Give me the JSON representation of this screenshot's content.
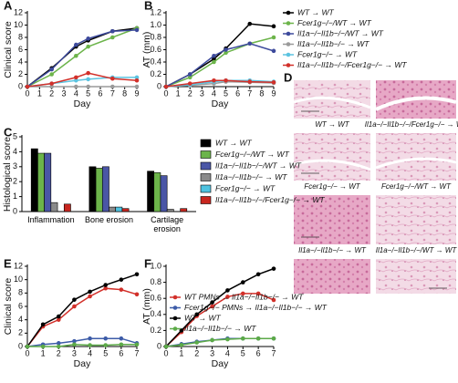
{
  "chart_data": [
    {
      "type": "line",
      "panel": "A",
      "x_label": "Day",
      "y_label": "Clinical score",
      "x": [
        0,
        2,
        4,
        5,
        7,
        9
      ],
      "xlim": [
        0,
        9
      ],
      "xticks": [
        0,
        1,
        2,
        3,
        4,
        5,
        6,
        7,
        8,
        9
      ],
      "ylim": [
        0,
        12
      ],
      "yticks": [
        0,
        2,
        4,
        6,
        8,
        10,
        12
      ],
      "series": [
        {
          "color": "#000000",
          "values": [
            0,
            3,
            6.5,
            7.5,
            9,
            9.5
          ]
        },
        {
          "color": "#6cb44a",
          "values": [
            0,
            2,
            5,
            6.5,
            8,
            9.5
          ]
        },
        {
          "color": "#3d4a9c",
          "values": [
            0,
            2.8,
            6.8,
            7.8,
            9,
            9.2
          ]
        },
        {
          "color": "#9a9a9a",
          "values": [
            0,
            0,
            0,
            0,
            0,
            0
          ]
        },
        {
          "color": "#5cc3e0",
          "values": [
            0,
            0.5,
            1,
            1.2,
            1.5,
            1.5
          ]
        },
        {
          "color": "#d2302a",
          "values": [
            0,
            0.5,
            1.5,
            2.2,
            1.3,
            1
          ]
        }
      ]
    },
    {
      "type": "line",
      "panel": "B",
      "x_label": "Day",
      "y_label": "AT (mm)",
      "x": [
        0,
        2,
        4,
        5,
        7,
        9
      ],
      "xlim": [
        0,
        9
      ],
      "xticks": [
        0,
        1,
        2,
        3,
        4,
        5,
        6,
        7,
        8,
        9
      ],
      "ylim": [
        0,
        1.2
      ],
      "yticks": [
        0,
        0.2,
        0.4,
        0.6,
        0.8,
        {
          "value": 1,
          "label": "1.0"
        },
        1.2
      ],
      "series": [
        {
          "name": "WT → WT",
          "color": "#000000",
          "values": [
            0,
            0.2,
            0.45,
            0.62,
            1.02,
            0.98
          ]
        },
        {
          "name": "Fcer1g−/−/WT → WT",
          "color": "#6cb44a",
          "values": [
            0,
            0.15,
            0.4,
            0.55,
            0.7,
            0.8
          ]
        },
        {
          "name": "Il1a−/−Il1b−/−/WT → WT",
          "color": "#3d4a9c",
          "values": [
            0,
            0.2,
            0.5,
            0.6,
            0.7,
            0.58
          ]
        },
        {
          "name": "Il1a−/−Il1b−/− → WT",
          "color": "#9a9a9a",
          "values": [
            0,
            0.02,
            0.05,
            0.08,
            0.07,
            0.06
          ]
        },
        {
          "name": "Fcer1g−/− → WT",
          "color": "#5cc3e0",
          "values": [
            0,
            0.03,
            0.08,
            0.1,
            0.1,
            0.08
          ]
        },
        {
          "name": "Il1a−/−Il1b−/−/Fcer1g−/− → WT",
          "color": "#d2302a",
          "values": [
            0,
            0.05,
            0.1,
            0.1,
            0.08,
            0.07
          ]
        }
      ]
    },
    {
      "type": "bar",
      "panel": "C",
      "y_label": "Histological score",
      "categories": [
        "Inflammation",
        "Bone erosion",
        "Cartilage erosion"
      ],
      "ylim": [
        0,
        5
      ],
      "yticks": [
        0,
        1,
        2,
        3,
        4,
        5
      ],
      "series": [
        {
          "name": "WT → WT",
          "color": "#000000",
          "values": [
            4.2,
            3.0,
            2.7
          ]
        },
        {
          "name": "Fcer1g−/−/WT → WT",
          "color": "#6cb44a",
          "values": [
            3.9,
            2.9,
            2.6
          ]
        },
        {
          "name": "Il1a−/−Il1b−/−/WT → WT",
          "color": "#4a56a6",
          "values": [
            3.9,
            3.0,
            2.4
          ]
        },
        {
          "name": "Il1a−/−Il1b−/− → WT",
          "color": "#8a8a8a",
          "values": [
            0.6,
            0.3,
            0.15
          ]
        },
        {
          "name": "Fcer1g−/− → WT",
          "color": "#4fc3e0",
          "values": [
            0,
            0.3,
            0
          ]
        },
        {
          "name": "Il1a−/−Il1b−/−/Fcer1g−/− → WT",
          "color": "#c8261f",
          "values": [
            0.5,
            0.2,
            0.2
          ]
        }
      ]
    },
    {
      "type": "line",
      "panel": "E",
      "x_label": "Day",
      "y_label": "Clinical score",
      "x": [
        0,
        1,
        2,
        3,
        4,
        5,
        6,
        7
      ],
      "xlim": [
        0,
        7
      ],
      "xticks": [
        0,
        1,
        2,
        3,
        4,
        5,
        6,
        7
      ],
      "ylim": [
        0,
        12
      ],
      "yticks": [
        0,
        2,
        4,
        6,
        8,
        10,
        12
      ],
      "series": [
        {
          "color": "#d2302a",
          "values": [
            0,
            3,
            4,
            6,
            7.5,
            8.7,
            8.5,
            7.8
          ]
        },
        {
          "color": "#3d5ca8",
          "values": [
            0,
            0.3,
            0.5,
            0.8,
            1.2,
            1.2,
            1.2,
            0.5
          ]
        },
        {
          "color": "#000000",
          "values": [
            0,
            3.3,
            4.5,
            7,
            8.2,
            9.2,
            10,
            10.8
          ]
        },
        {
          "color": "#5caa48",
          "values": [
            0,
            0,
            0,
            0.3,
            0.2,
            0.2,
            0.3,
            0.3
          ]
        }
      ]
    },
    {
      "type": "line",
      "panel": "F",
      "x_label": "Day",
      "y_label": "AT (mm)",
      "x": [
        0,
        1,
        2,
        3,
        4,
        5,
        6,
        7
      ],
      "xlim": [
        0,
        7
      ],
      "xticks": [
        0,
        1,
        2,
        3,
        4,
        5,
        6,
        7
      ],
      "ylim": [
        0,
        1
      ],
      "yticks": [
        0,
        0.2,
        0.4,
        0.6,
        0.8,
        {
          "value": 1,
          "label": "1.0"
        }
      ],
      "series": [
        {
          "name": "WT PMNs → Il1a−/−Il1b−/− → WT",
          "color": "#d2302a",
          "values": [
            0,
            0.18,
            0.38,
            0.5,
            0.62,
            0.66,
            0.66,
            0.58
          ]
        },
        {
          "name": "Fcer1g−/− PMNs → Il1a−/−Il1b−/− → WT",
          "color": "#3d5ca8",
          "values": [
            0,
            0.03,
            0.06,
            0.08,
            0.1,
            0.1,
            0.1,
            0.1
          ]
        },
        {
          "name": "WT → WT",
          "color": "#000000",
          "values": [
            0,
            0.2,
            0.4,
            0.55,
            0.7,
            0.8,
            0.9,
            0.97
          ]
        },
        {
          "name": "Il1a−/−Il1b−/− → WT",
          "color": "#5caa48",
          "values": [
            0,
            0.02,
            0.05,
            0.08,
            0.09,
            0.1,
            0.1,
            0.1
          ]
        }
      ]
    }
  ],
  "panel_d": {
    "label": "D",
    "captions": [
      "WT → WT",
      "Il1a−/−Il1b−/−/Fcer1g−/− → WT",
      "Fcer1g−/− → WT",
      "Fcer1g−/−/WT → WT",
      "Il1a−/−Il1b−/− → WT",
      "Il1a−/−Il1b−/−/WT → WT"
    ]
  }
}
